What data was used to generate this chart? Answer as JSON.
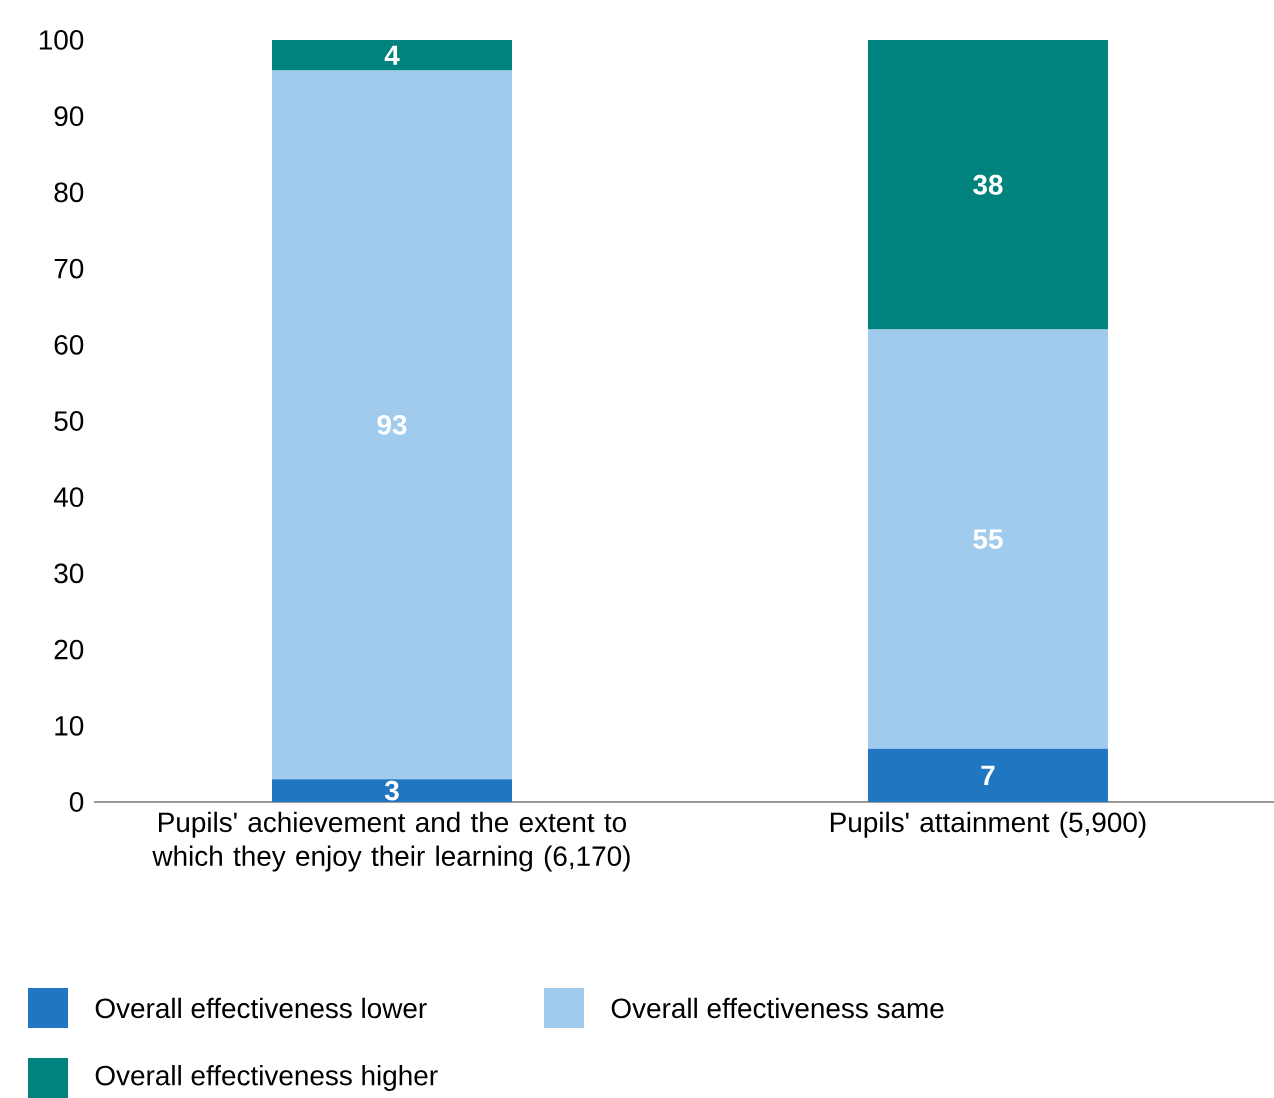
{
  "chart_data": {
    "type": "bar",
    "stacked": true,
    "categories": [
      "Pupils' achievement and the extent to which they enjoy their learning (6,170)",
      "Pupils' attainment (5,900)"
    ],
    "series": [
      {
        "name": "Overall effectiveness lower",
        "color": "#2176c1",
        "values": [
          3,
          7
        ]
      },
      {
        "name": "Overall effectiveness same",
        "color": "#a0cbec",
        "values": [
          93,
          55
        ]
      },
      {
        "name": "Overall effectiveness higher",
        "color": "#00827f",
        "values": [
          4,
          38
        ]
      }
    ],
    "ylim": [
      0,
      100
    ],
    "yticks": [
      0,
      10,
      20,
      30,
      40,
      50,
      60,
      70,
      80,
      90,
      100
    ],
    "data_labels": true,
    "grid": false,
    "legend": "bottom"
  }
}
